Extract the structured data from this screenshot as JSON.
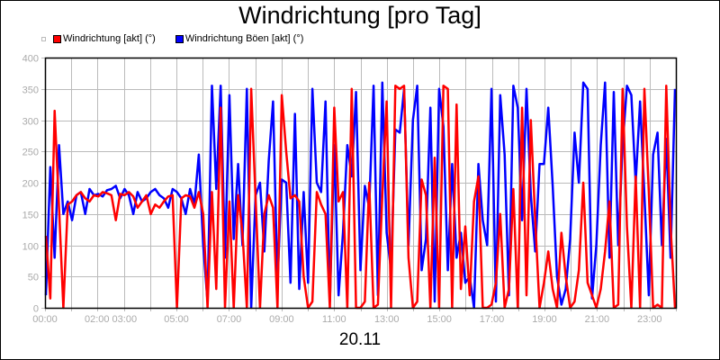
{
  "title": "Windrichtung [pro Tag]",
  "date_label": "20.11",
  "legend": [
    {
      "label": "Windrichtung [akt] (°)",
      "color": "#ff0000"
    },
    {
      "label": "Windrichtung Böen [akt] (°)",
      "color": "#0000ff"
    }
  ],
  "chart_data": {
    "type": "line",
    "title": "Windrichtung [pro Tag]",
    "xlabel": "20.11",
    "ylabel": "",
    "ylim": [
      0,
      400
    ],
    "yticks": [
      0,
      50,
      100,
      150,
      200,
      250,
      300,
      350,
      400
    ],
    "xticks": [
      "00:00",
      "02:00 03:00",
      "05:00",
      "07:00",
      "09:00",
      "11:00",
      "13:00",
      "15:00",
      "17:00",
      "19:00",
      "21:00",
      "23:00"
    ],
    "xrange_hours": [
      0,
      24
    ],
    "grid": true,
    "legend_position": "top-left",
    "sample_interval_minutes": 10,
    "series": [
      {
        "name": "Windrichtung [akt] (°)",
        "color": "#ff0000",
        "values": [
          115,
          15,
          315,
          160,
          0,
          165,
          170,
          180,
          185,
          175,
          170,
          180,
          178,
          185,
          183,
          180,
          140,
          182,
          180,
          185,
          178,
          160,
          170,
          180,
          150,
          165,
          160,
          170,
          178,
          180,
          0,
          175,
          180,
          178,
          160,
          185,
          150,
          0,
          185,
          30,
          320,
          0,
          170,
          0,
          180,
          120,
          0,
          350,
          175,
          0,
          150,
          180,
          160,
          0,
          340,
          250,
          175,
          180,
          170,
          50,
          0,
          10,
          185,
          165,
          150,
          0,
          320,
          170,
          185,
          0,
          350,
          0,
          0,
          10,
          200,
          0,
          5,
          180,
          330,
          0,
          355,
          350,
          355,
          80,
          0,
          10,
          205,
          180,
          0,
          240,
          0,
          355,
          350,
          0,
          325,
          30,
          130,
          20,
          170,
          210,
          0,
          0,
          5,
          40,
          150,
          0,
          30,
          190,
          0,
          320,
          20,
          300,
          140,
          0,
          40,
          90,
          30,
          0,
          120,
          50,
          0,
          10,
          60,
          200,
          40,
          20,
          0,
          30,
          90,
          170,
          0,
          5,
          350,
          130,
          0,
          210,
          0,
          350,
          185,
          0,
          5,
          0,
          355,
          130,
          0
        ],
        "note": "values approximate, read from rendered pixels"
      },
      {
        "name": "Windrichtung Böen [akt] (°)",
        "color": "#0000ff",
        "values": [
          20,
          225,
          80,
          260,
          150,
          170,
          140,
          180,
          185,
          150,
          190,
          180,
          182,
          178,
          188,
          190,
          195,
          175,
          190,
          180,
          150,
          185,
          170,
          175,
          185,
          190,
          180,
          175,
          160,
          190,
          185,
          175,
          150,
          190,
          165,
          245,
          100,
          10,
          355,
          190,
          355,
          80,
          340,
          110,
          230,
          100,
          350,
          0,
          180,
          200,
          90,
          235,
          330,
          40,
          205,
          200,
          40,
          310,
          30,
          185,
          40,
          350,
          200,
          185,
          330,
          10,
          260,
          20,
          120,
          260,
          210,
          345,
          60,
          195,
          160,
          355,
          20,
          360,
          120,
          60,
          285,
          280,
          350,
          100,
          300,
          355,
          60,
          110,
          320,
          10,
          350,
          290,
          60,
          230,
          80,
          120,
          40,
          50,
          0,
          230,
          140,
          100,
          350,
          10,
          340,
          245,
          20,
          355,
          320,
          140,
          350,
          180,
          90,
          230,
          230,
          320,
          195,
          50,
          5,
          30,
          110,
          280,
          200,
          360,
          350,
          15,
          100,
          260,
          360,
          80,
          345,
          100,
          260,
          355,
          340,
          200,
          330,
          180,
          20,
          245,
          280,
          100,
          270,
          80,
          350
        ],
        "note": "values approximate, read from rendered pixels"
      }
    ]
  },
  "axis": {
    "y_ticks": [
      "0",
      "50",
      "100",
      "150",
      "200",
      "250",
      "300",
      "350",
      "400"
    ],
    "x_ticks": [
      {
        "label": "00:00",
        "hour": 0
      },
      {
        "label": "02:00 03:00",
        "hour": 2.5
      },
      {
        "label": "05:00",
        "hour": 5
      },
      {
        "label": "07:00",
        "hour": 7
      },
      {
        "label": "09:00",
        "hour": 9
      },
      {
        "label": "11:00",
        "hour": 11
      },
      {
        "label": "13:00",
        "hour": 13
      },
      {
        "label": "15:00",
        "hour": 15
      },
      {
        "label": "17:00",
        "hour": 17
      },
      {
        "label": "19:00",
        "hour": 19
      },
      {
        "label": "21:00",
        "hour": 21
      },
      {
        "label": "23:00",
        "hour": 23
      }
    ]
  },
  "colors": {
    "grid": "#bbbbbb",
    "tick_text": "#aaaaaa",
    "axis": "#000000"
  }
}
